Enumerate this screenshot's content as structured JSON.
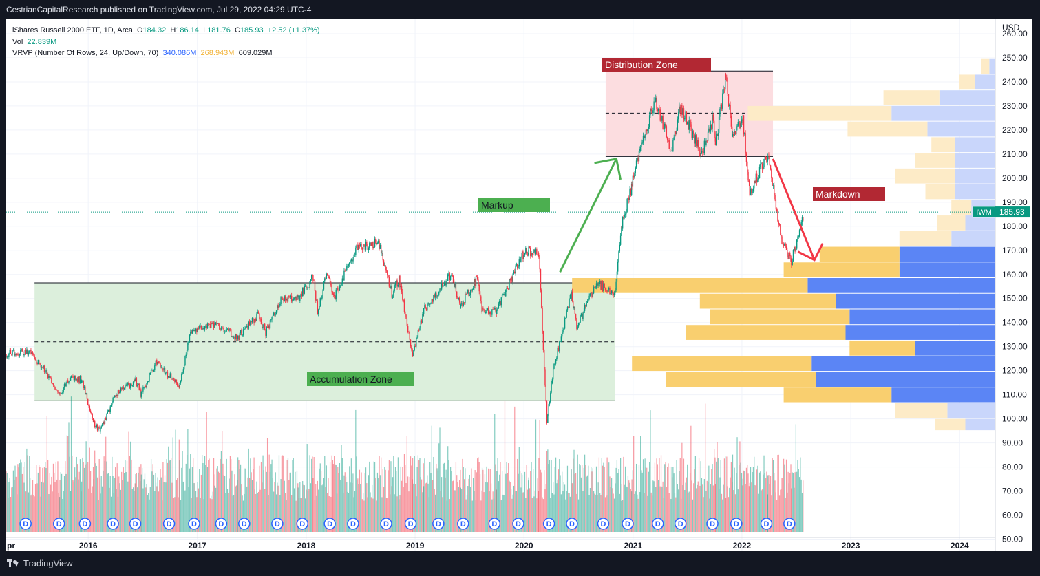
{
  "header": {
    "publisher": "CestrianCapitalResearch published on TradingView.com, Jul 29, 2022 04:29 UTC-4"
  },
  "legend": {
    "title": "iShares Russell 2000 ETF, 1D, Arca",
    "o_label": "O",
    "o_value": "184.32",
    "h_label": "H",
    "h_value": "186.14",
    "l_label": "L",
    "l_value": "181.76",
    "c_label": "C",
    "c_value": "185.93",
    "change": "+2.52 (+1.37%)",
    "vol_label": "Vol",
    "vol_value": "22.839M",
    "vrvp_label": "VRVP (Number Of Rows, 24, Up/Down, 70)",
    "vrvp_up": "340.086M",
    "vrvp_down": "268.943M",
    "vrvp_total": "609.029M"
  },
  "annotations": {
    "distribution": "Distribution Zone",
    "markup": "Markup",
    "markdown": "Markdown",
    "accumulation": "Accumulation Zone"
  },
  "price_tag": {
    "ticker": "IWM",
    "value": "185.93"
  },
  "currency": "USD",
  "x_edge_label": "pr",
  "dividend_marker": "D",
  "footer": {
    "brand": "TradingView"
  },
  "colors": {
    "up": "#089981",
    "down": "#f23645",
    "accumulation_fill": "#dcefdc",
    "distribution_fill": "#fcdde0",
    "label_green": "#4caf50",
    "label_red": "#b22833",
    "arrow_green": "#4caf50",
    "arrow_red": "#f23645",
    "vp_up": "#5b85f5",
    "vp_down": "#f9cf6f",
    "vp_up_light": "#c9d6fb",
    "vp_down_light": "#fdebc7",
    "price_line": "#089981"
  },
  "chart_data": {
    "type": "candlestick",
    "title": "iShares Russell 2000 ETF, 1D, Arca",
    "currency": "USD",
    "yticks": [
      50,
      60,
      70,
      80,
      90,
      100,
      110,
      120,
      130,
      140,
      150,
      160,
      170,
      180,
      190,
      200,
      210,
      220,
      230,
      240,
      250,
      260
    ],
    "ytick_labels": [
      "50.00",
      "60.00",
      "70.00",
      "80.00",
      "90.00",
      "100.00",
      "110.00",
      "120.00",
      "130.00",
      "140.00",
      "150.00",
      "160.00",
      "170.00",
      "180.00",
      "190.00",
      "200.00",
      "210.00",
      "220.00",
      "230.00",
      "240.00",
      "250.00",
      "260.00"
    ],
    "ylim": [
      45,
      266
    ],
    "xlim": [
      "2015-04-01",
      "2024-09-01"
    ],
    "xticks": [
      {
        "label": "2016",
        "date": "2016-01-01"
      },
      {
        "label": "2017",
        "date": "2017-01-01"
      },
      {
        "label": "2018",
        "date": "2018-01-01"
      },
      {
        "label": "2019",
        "date": "2019-01-01"
      },
      {
        "label": "2020",
        "date": "2020-01-01"
      },
      {
        "label": "2021",
        "date": "2021-01-01"
      },
      {
        "label": "2022",
        "date": "2022-01-01"
      },
      {
        "label": "2023",
        "date": "2023-01-01"
      },
      {
        "label": "2024",
        "date": "2024-01-01"
      }
    ],
    "close_path": [
      [
        "2015-04-01",
        127
      ],
      [
        "2015-06-20",
        128
      ],
      [
        "2015-08-10",
        120
      ],
      [
        "2015-09-28",
        110
      ],
      [
        "2015-11-05",
        118
      ],
      [
        "2015-12-10",
        116
      ],
      [
        "2016-01-20",
        98
      ],
      [
        "2016-02-11",
        95
      ],
      [
        "2016-04-01",
        110
      ],
      [
        "2016-06-08",
        116
      ],
      [
        "2016-06-27",
        110
      ],
      [
        "2016-08-15",
        123
      ],
      [
        "2016-11-03",
        114
      ],
      [
        "2016-12-09",
        137
      ],
      [
        "2017-03-01",
        139
      ],
      [
        "2017-05-17",
        134
      ],
      [
        "2017-07-25",
        143
      ],
      [
        "2017-08-18",
        136
      ],
      [
        "2017-10-05",
        149
      ],
      [
        "2017-12-05",
        150
      ],
      [
        "2018-01-24",
        159
      ],
      [
        "2018-02-08",
        145
      ],
      [
        "2018-03-13",
        161
      ],
      [
        "2018-04-02",
        150
      ],
      [
        "2018-06-20",
        171
      ],
      [
        "2018-08-31",
        173
      ],
      [
        "2018-10-15",
        152
      ],
      [
        "2018-11-08",
        158
      ],
      [
        "2018-12-24",
        127
      ],
      [
        "2019-01-30",
        145
      ],
      [
        "2019-04-30",
        160
      ],
      [
        "2019-06-03",
        147
      ],
      [
        "2019-07-26",
        158
      ],
      [
        "2019-08-14",
        145
      ],
      [
        "2019-10-02",
        145
      ],
      [
        "2019-12-26",
        168
      ],
      [
        "2020-01-17",
        170
      ],
      [
        "2020-02-20",
        168
      ],
      [
        "2020-03-18",
        99
      ],
      [
        "2020-04-08",
        120
      ],
      [
        "2020-06-08",
        152
      ],
      [
        "2020-06-26",
        138
      ],
      [
        "2020-08-31",
        157
      ],
      [
        "2020-10-30",
        151
      ],
      [
        "2020-11-24",
        181
      ],
      [
        "2020-12-28",
        197
      ],
      [
        "2021-01-26",
        214
      ],
      [
        "2021-03-15",
        232
      ],
      [
        "2021-05-12",
        211
      ],
      [
        "2021-06-08",
        230
      ],
      [
        "2021-08-19",
        210
      ],
      [
        "2021-09-24",
        224
      ],
      [
        "2021-10-04",
        214
      ],
      [
        "2021-11-08",
        243
      ],
      [
        "2021-12-01",
        217
      ],
      [
        "2022-01-04",
        224
      ],
      [
        "2022-01-27",
        194
      ],
      [
        "2022-03-29",
        210
      ],
      [
        "2022-05-12",
        175
      ],
      [
        "2022-06-16",
        165
      ],
      [
        "2022-07-28",
        185.93
      ]
    ],
    "volume_max_m": 140,
    "dividend_dates": [
      "2015-06-05",
      "2015-09-25",
      "2015-12-21",
      "2016-03-24",
      "2016-06-07",
      "2016-09-28",
      "2016-12-21",
      "2017-03-22",
      "2017-06-07",
      "2017-09-26",
      "2017-12-19",
      "2018-03-21",
      "2018-06-07",
      "2018-09-26",
      "2018-12-17",
      "2019-03-20",
      "2019-06-11",
      "2019-09-24",
      "2019-12-13",
      "2020-03-25",
      "2020-06-10",
      "2020-09-23",
      "2020-12-14",
      "2021-03-25",
      "2021-06-09",
      "2021-09-24",
      "2021-12-13",
      "2022-03-24",
      "2022-06-09"
    ],
    "volume_profile": {
      "rows": [
        {
          "from": 95,
          "to": 100,
          "up": 15,
          "down": 15,
          "in_value_area": false
        },
        {
          "from": 100,
          "to": 106.6,
          "up": 24,
          "down": 26,
          "in_value_area": false
        },
        {
          "from": 106.6,
          "to": 113,
          "up": 52,
          "down": 54,
          "in_value_area": true
        },
        {
          "from": 113,
          "to": 119.6,
          "up": 90,
          "down": 75,
          "in_value_area": true
        },
        {
          "from": 119.6,
          "to": 126,
          "up": 92,
          "down": 90,
          "in_value_area": true
        },
        {
          "from": 126,
          "to": 132.5,
          "up": 40,
          "down": 33,
          "in_value_area": true
        },
        {
          "from": 132.5,
          "to": 139,
          "up": 75,
          "down": 80,
          "in_value_area": true
        },
        {
          "from": 139,
          "to": 145.5,
          "up": 73,
          "down": 70,
          "in_value_area": true
        },
        {
          "from": 145.5,
          "to": 152,
          "up": 80,
          "down": 68,
          "in_value_area": true
        },
        {
          "from": 152,
          "to": 158.5,
          "up": 94,
          "down": 118,
          "in_value_area": true
        },
        {
          "from": 158.5,
          "to": 165,
          "up": 48,
          "down": 58,
          "in_value_area": true
        },
        {
          "from": 165,
          "to": 171.5,
          "up": 48,
          "down": 40,
          "in_value_area": true
        },
        {
          "from": 171.5,
          "to": 178,
          "up": 22,
          "down": 26,
          "in_value_area": false
        },
        {
          "from": 178,
          "to": 184.5,
          "up": 15,
          "down": 14,
          "in_value_area": false
        },
        {
          "from": 184.5,
          "to": 191,
          "up": 12,
          "down": 10,
          "in_value_area": false
        },
        {
          "from": 191,
          "to": 197.5,
          "up": 20,
          "down": 15,
          "in_value_area": false
        },
        {
          "from": 197.5,
          "to": 204,
          "up": 20,
          "down": 30,
          "in_value_area": false
        },
        {
          "from": 204,
          "to": 210.5,
          "up": 20,
          "down": 20,
          "in_value_area": false
        },
        {
          "from": 210.5,
          "to": 217,
          "up": 20,
          "down": 12,
          "in_value_area": false
        },
        {
          "from": 217,
          "to": 223.5,
          "up": 34,
          "down": 40,
          "in_value_area": false
        },
        {
          "from": 223.5,
          "to": 230,
          "up": 52,
          "down": 72,
          "in_value_area": false
        },
        {
          "from": 230,
          "to": 236.5,
          "up": 28,
          "down": 28,
          "in_value_area": false
        },
        {
          "from": 236.5,
          "to": 243,
          "up": 10,
          "down": 8,
          "in_value_area": false
        },
        {
          "from": 243,
          "to": 249.5,
          "up": 3,
          "down": 4,
          "in_value_area": false
        }
      ]
    },
    "zones": {
      "accumulation": {
        "top": 156.5,
        "mid": 132,
        "bottom": 107.5,
        "from": "2015-07-05",
        "to": "2020-11-01"
      },
      "distribution": {
        "top": 244.5,
        "mid": 227,
        "bottom": 209,
        "from": "2020-10-01",
        "to": "2022-04-15"
      }
    },
    "last_price": 185.93,
    "grid": true
  }
}
